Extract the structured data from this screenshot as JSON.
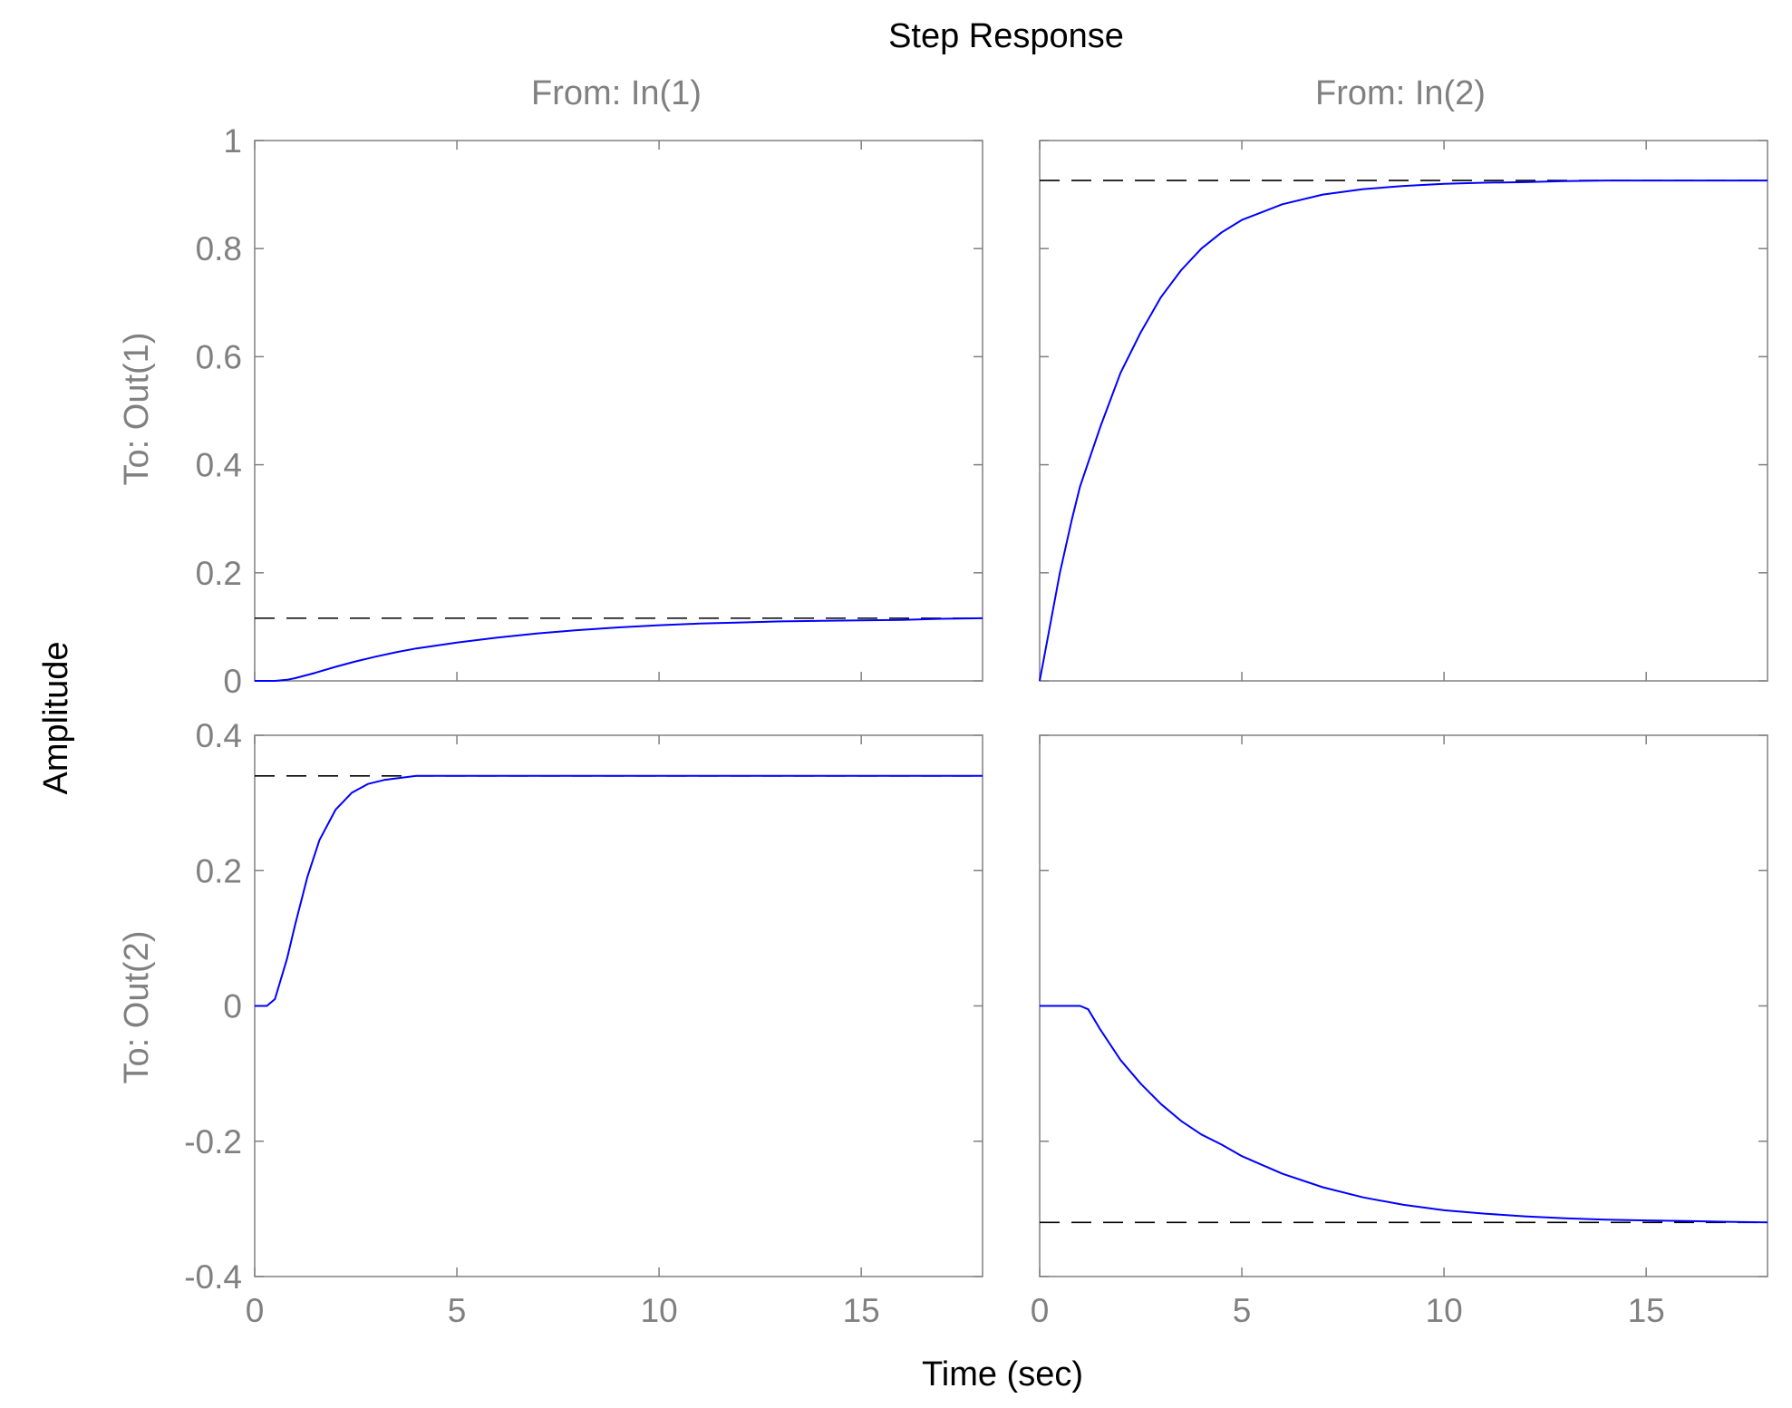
{
  "chart_data": {
    "type": "line",
    "title": "Step Response",
    "xlabel": "Time (sec)",
    "ylabel": "Amplitude",
    "column_labels": [
      "From: In(1)",
      "From: In(2)"
    ],
    "row_labels": [
      "To: Out(1)",
      "To: Out(2)"
    ],
    "xlim": [
      0,
      18
    ],
    "x_ticks": [
      0,
      5,
      10,
      15
    ],
    "x_tick_labels": [
      "0",
      "5",
      "10",
      "15"
    ],
    "rows": [
      {
        "ylim": [
          0,
          1
        ],
        "y_ticks": [
          0,
          0.2,
          0.4,
          0.6,
          0.8,
          1
        ],
        "y_tick_labels": [
          "0",
          "0.2",
          "0.4",
          "0.6",
          "0.8",
          "1"
        ]
      },
      {
        "ylim": [
          -0.4,
          0.4
        ],
        "y_ticks": [
          -0.4,
          -0.2,
          0,
          0.2,
          0.4
        ],
        "y_tick_labels": [
          "-0.4",
          "-0.2",
          "0",
          "0.2",
          "0.4"
        ]
      }
    ],
    "grid": false,
    "colors": {
      "response": "#0000ff",
      "steady_state": "#000000",
      "axes": "#808080"
    },
    "panels": [
      {
        "row": 0,
        "col": 0,
        "steady_state": 0.116,
        "x": [
          0,
          0.5,
          0.8,
          1,
          1.5,
          2,
          2.5,
          3,
          3.5,
          4,
          5,
          6,
          7,
          8,
          9,
          10,
          11,
          12,
          13,
          14,
          15,
          16,
          17,
          18
        ],
        "y": [
          0,
          0,
          0.002,
          0.005,
          0.015,
          0.026,
          0.036,
          0.045,
          0.053,
          0.06,
          0.071,
          0.08,
          0.088,
          0.094,
          0.099,
          0.103,
          0.106,
          0.108,
          0.11,
          0.111,
          0.112,
          0.113,
          0.115,
          0.116
        ]
      },
      {
        "row": 0,
        "col": 1,
        "steady_state": 0.926,
        "x": [
          0,
          0.1,
          0.3,
          0.5,
          0.8,
          1,
          1.5,
          2,
          2.5,
          3,
          3.5,
          4,
          4.5,
          5,
          6,
          7,
          8,
          9,
          10,
          11,
          12,
          13,
          14,
          16,
          18
        ],
        "y": [
          0,
          0.04,
          0.12,
          0.2,
          0.3,
          0.36,
          0.47,
          0.57,
          0.645,
          0.71,
          0.76,
          0.8,
          0.83,
          0.853,
          0.882,
          0.9,
          0.91,
          0.916,
          0.92,
          0.922,
          0.923,
          0.925,
          0.926,
          0.926,
          0.926
        ]
      },
      {
        "row": 1,
        "col": 0,
        "steady_state": 0.34,
        "x": [
          0,
          0.3,
          0.5,
          0.8,
          1,
          1.3,
          1.6,
          2,
          2.4,
          2.8,
          3.2,
          3.6,
          4,
          5,
          18
        ],
        "y": [
          0,
          0,
          0.01,
          0.07,
          0.12,
          0.19,
          0.245,
          0.29,
          0.315,
          0.328,
          0.334,
          0.337,
          0.34,
          0.34,
          0.34
        ]
      },
      {
        "row": 1,
        "col": 1,
        "steady_state": -0.32,
        "x": [
          0,
          1,
          1.2,
          1.5,
          2,
          2.5,
          3,
          3.5,
          4,
          4.5,
          5,
          5.5,
          6,
          7,
          8,
          9,
          10,
          11,
          12,
          13,
          14,
          15,
          16,
          17,
          18
        ],
        "y": [
          0,
          0,
          -0.005,
          -0.035,
          -0.08,
          -0.115,
          -0.145,
          -0.17,
          -0.19,
          -0.205,
          -0.222,
          -0.235,
          -0.248,
          -0.268,
          -0.283,
          -0.294,
          -0.302,
          -0.307,
          -0.311,
          -0.314,
          -0.316,
          -0.317,
          -0.318,
          -0.319,
          -0.32
        ]
      }
    ]
  }
}
